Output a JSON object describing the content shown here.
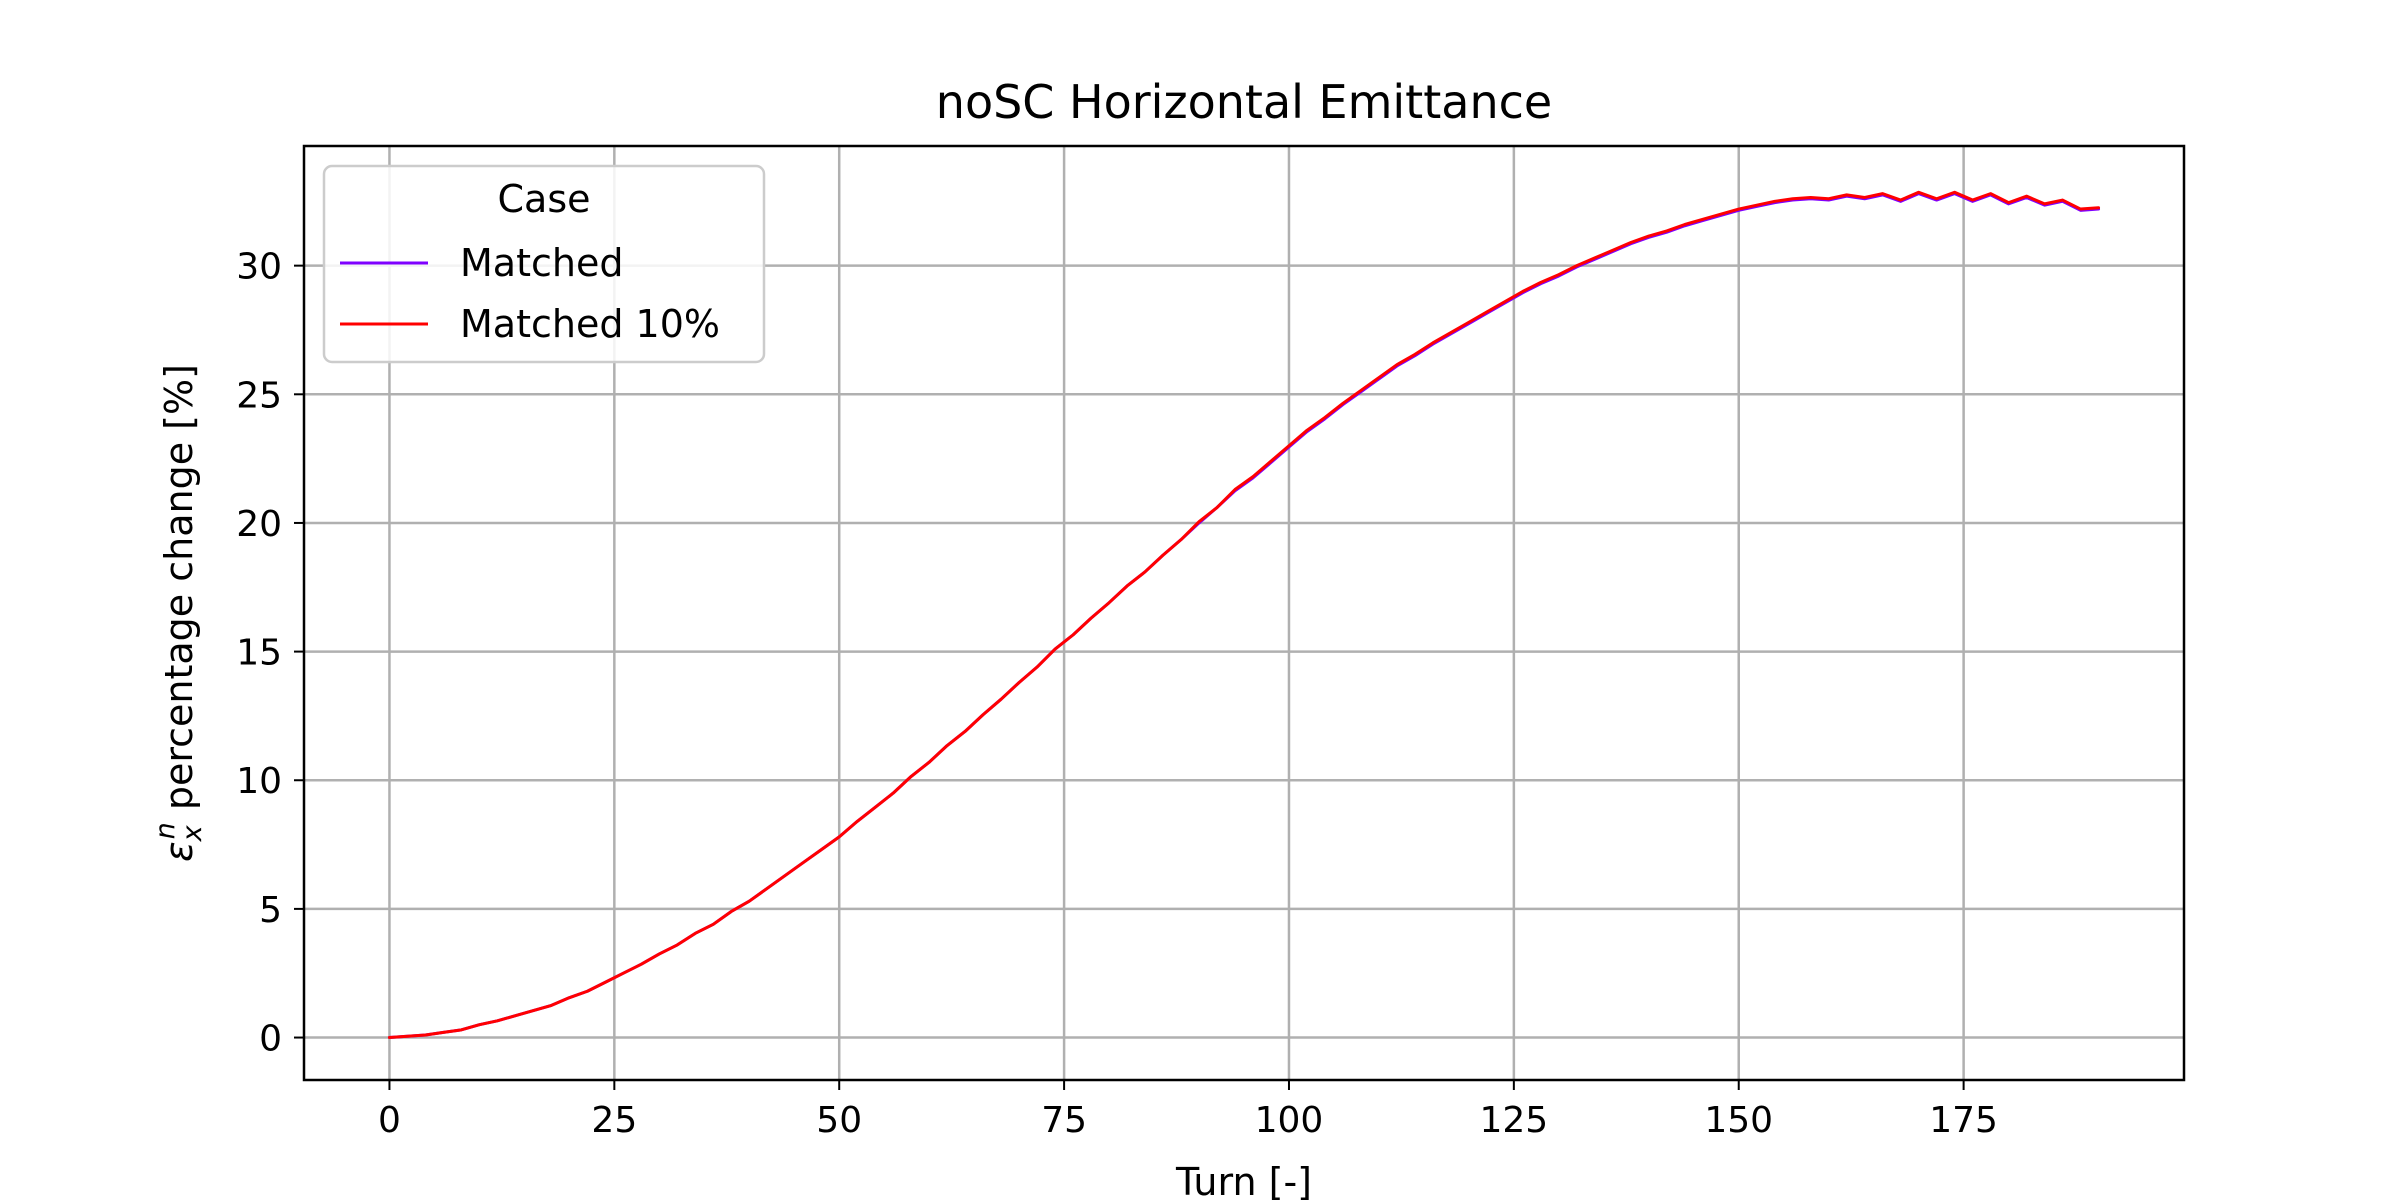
{
  "chart_data": {
    "type": "line",
    "title": "noSC Horizontal Emittance",
    "xlabel": "Turn [-]",
    "ylabel_prefix": "ε",
    "ylabel_sub": "x",
    "ylabel_sup": "n",
    "ylabel_suffix": " percentage change [%]",
    "xlim": [
      -9.5,
      199.5
    ],
    "ylim": [
      -1.65,
      34.65
    ],
    "xticks": [
      0,
      25,
      50,
      75,
      100,
      125,
      150,
      175
    ],
    "yticks": [
      0,
      5,
      10,
      15,
      20,
      25,
      30
    ],
    "grid": true,
    "legend": {
      "title": "Case",
      "placement": "upper-left"
    },
    "series": [
      {
        "name": "Matched",
        "color": "#7f00ff",
        "x": [
          0,
          2,
          4,
          6,
          8,
          10,
          12,
          14,
          16,
          18,
          20,
          22,
          24,
          26,
          28,
          30,
          32,
          34,
          36,
          38,
          40,
          42,
          44,
          46,
          48,
          50,
          52,
          54,
          56,
          58,
          60,
          62,
          64,
          66,
          68,
          70,
          72,
          74,
          76,
          78,
          80,
          82,
          84,
          86,
          88,
          90,
          92,
          94,
          96,
          98,
          100,
          102,
          104,
          106,
          108,
          110,
          112,
          114,
          116,
          118,
          120,
          122,
          124,
          126,
          128,
          130,
          132,
          134,
          136,
          138,
          140,
          142,
          144,
          146,
          148,
          150,
          152,
          154,
          156,
          158,
          160,
          162,
          164,
          166,
          168,
          170,
          172,
          174,
          176,
          178,
          180,
          182,
          184,
          186,
          188,
          190
        ],
        "values": [
          0.0,
          0.05,
          0.1,
          0.2,
          0.3,
          0.5,
          0.65,
          0.85,
          1.05,
          1.25,
          1.55,
          1.8,
          2.15,
          2.5,
          2.85,
          3.25,
          3.6,
          4.05,
          4.4,
          4.9,
          5.3,
          5.8,
          6.3,
          6.8,
          7.3,
          7.8,
          8.4,
          8.95,
          9.5,
          10.15,
          10.7,
          11.35,
          11.9,
          12.55,
          13.15,
          13.8,
          14.4,
          15.1,
          15.65,
          16.3,
          16.9,
          17.55,
          18.1,
          18.75,
          19.35,
          20.0,
          20.6,
          21.25,
          21.75,
          22.35,
          22.95,
          23.55,
          24.05,
          24.6,
          25.1,
          25.6,
          26.1,
          26.5,
          26.95,
          27.35,
          27.75,
          28.15,
          28.55,
          28.95,
          29.3,
          29.6,
          29.95,
          30.25,
          30.55,
          30.85,
          31.1,
          31.3,
          31.55,
          31.75,
          31.95,
          32.15,
          32.3,
          32.45,
          32.55,
          32.6,
          32.55,
          32.7,
          32.6,
          32.75,
          32.5,
          32.8,
          32.55,
          32.8,
          32.5,
          32.75,
          32.4,
          32.65,
          32.35,
          32.5,
          32.15,
          32.2
        ]
      },
      {
        "name": "Matched 10%",
        "color": "#ff0000",
        "x": [
          0,
          2,
          4,
          6,
          8,
          10,
          12,
          14,
          16,
          18,
          20,
          22,
          24,
          26,
          28,
          30,
          32,
          34,
          36,
          38,
          40,
          42,
          44,
          46,
          48,
          50,
          52,
          54,
          56,
          58,
          60,
          62,
          64,
          66,
          68,
          70,
          72,
          74,
          76,
          78,
          80,
          82,
          84,
          86,
          88,
          90,
          92,
          94,
          96,
          98,
          100,
          102,
          104,
          106,
          108,
          110,
          112,
          114,
          116,
          118,
          120,
          122,
          124,
          126,
          128,
          130,
          132,
          134,
          136,
          138,
          140,
          142,
          144,
          146,
          148,
          150,
          152,
          154,
          156,
          158,
          160,
          162,
          164,
          166,
          168,
          170,
          172,
          174,
          176,
          178,
          180,
          182,
          184,
          186,
          188,
          190
        ],
        "values": [
          0.0,
          0.05,
          0.1,
          0.2,
          0.3,
          0.5,
          0.65,
          0.85,
          1.05,
          1.25,
          1.55,
          1.8,
          2.15,
          2.5,
          2.85,
          3.25,
          3.6,
          4.05,
          4.4,
          4.9,
          5.3,
          5.8,
          6.3,
          6.8,
          7.3,
          7.8,
          8.4,
          8.95,
          9.5,
          10.15,
          10.7,
          11.35,
          11.9,
          12.55,
          13.15,
          13.8,
          14.4,
          15.1,
          15.65,
          16.3,
          16.9,
          17.55,
          18.1,
          18.75,
          19.35,
          20.05,
          20.6,
          21.3,
          21.8,
          22.4,
          23.0,
          23.6,
          24.1,
          24.65,
          25.15,
          25.65,
          26.15,
          26.55,
          27.0,
          27.4,
          27.8,
          28.2,
          28.6,
          29.0,
          29.35,
          29.65,
          30.0,
          30.3,
          30.6,
          30.9,
          31.15,
          31.35,
          31.6,
          31.8,
          32.0,
          32.2,
          32.35,
          32.5,
          32.6,
          32.65,
          32.6,
          32.75,
          32.65,
          32.8,
          32.55,
          32.85,
          32.6,
          32.85,
          32.55,
          32.8,
          32.45,
          32.7,
          32.4,
          32.55,
          32.2,
          32.25
        ]
      }
    ]
  }
}
